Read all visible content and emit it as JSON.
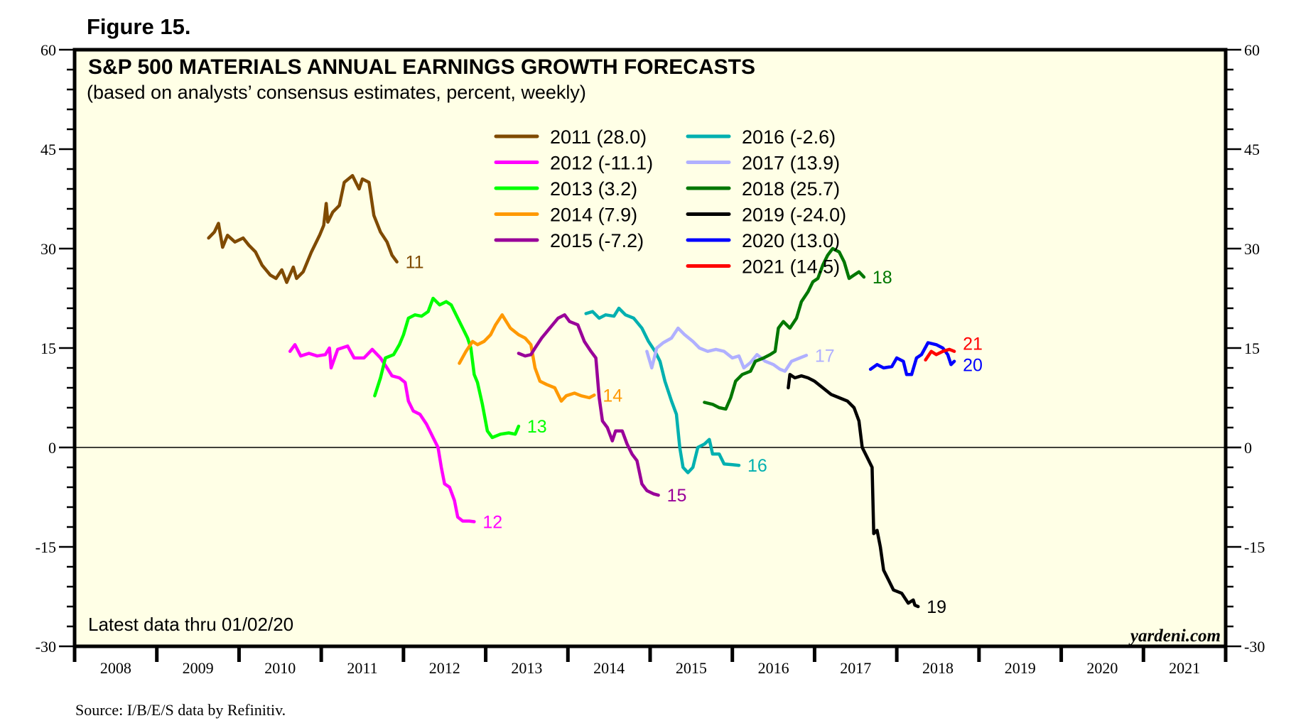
{
  "figure_label": "Figure 15.",
  "source": "Source: I/B/E/S data by Refinitiv.",
  "note": "Latest data thru 01/02/20",
  "brand": "yardeni.com",
  "colors": {
    "plot_background": "#ffffe6",
    "frame": "#000000",
    "zero_line": "#000000"
  },
  "chart_data": {
    "type": "line",
    "title": "S&P 500 MATERIALS ANNUAL EARNINGS GROWTH FORECASTS",
    "subtitle": "(based on analysts’ consensus estimates, percent, weekly)",
    "xlabel": "",
    "ylabel": "",
    "xlim": [
      2008,
      2022
    ],
    "ylim": [
      -30,
      60
    ],
    "y_ticks": [
      -30,
      -15,
      0,
      15,
      30,
      45,
      60
    ],
    "y_minor_step": 3,
    "x_tick_labels": [
      "2008",
      "2009",
      "2010",
      "2011",
      "2012",
      "2013",
      "2014",
      "2015",
      "2016",
      "2017",
      "2018",
      "2019",
      "2020",
      "2021"
    ],
    "zero_line": true,
    "grid": false,
    "legend_position": "top-center",
    "series": [
      {
        "name": "2011 (28.0)",
        "end_label": "11",
        "color": "#7f4a00",
        "points": [
          [
            2009.63,
            31.6
          ],
          [
            2009.7,
            32.5
          ],
          [
            2009.75,
            33.8
          ],
          [
            2009.8,
            30.2
          ],
          [
            2009.86,
            32.0
          ],
          [
            2009.95,
            31.0
          ],
          [
            2010.05,
            31.6
          ],
          [
            2010.12,
            30.5
          ],
          [
            2010.2,
            29.5
          ],
          [
            2010.28,
            27.5
          ],
          [
            2010.38,
            26.0
          ],
          [
            2010.45,
            25.5
          ],
          [
            2010.52,
            26.8
          ],
          [
            2010.58,
            24.9
          ],
          [
            2010.66,
            27.2
          ],
          [
            2010.7,
            25.5
          ],
          [
            2010.78,
            26.5
          ],
          [
            2010.88,
            29.5
          ],
          [
            2010.98,
            32.0
          ],
          [
            2011.03,
            33.5
          ],
          [
            2011.06,
            36.8
          ],
          [
            2011.08,
            34.0
          ],
          [
            2011.14,
            35.5
          ],
          [
            2011.22,
            36.5
          ],
          [
            2011.28,
            40.0
          ],
          [
            2011.38,
            41.0
          ],
          [
            2011.46,
            39.0
          ],
          [
            2011.5,
            40.5
          ],
          [
            2011.58,
            40.0
          ],
          [
            2011.64,
            35.0
          ],
          [
            2011.72,
            32.5
          ],
          [
            2011.8,
            31.0
          ],
          [
            2011.86,
            29.0
          ],
          [
            2011.92,
            28.0
          ]
        ]
      },
      {
        "name": "2012 (-11.1)",
        "end_label": "12",
        "color": "#ff00ff",
        "points": [
          [
            2010.62,
            14.5
          ],
          [
            2010.68,
            15.5
          ],
          [
            2010.75,
            13.8
          ],
          [
            2010.85,
            14.2
          ],
          [
            2010.95,
            13.8
          ],
          [
            2011.05,
            14.0
          ],
          [
            2011.1,
            15.0
          ],
          [
            2011.12,
            12.0
          ],
          [
            2011.2,
            14.8
          ],
          [
            2011.32,
            15.3
          ],
          [
            2011.4,
            13.5
          ],
          [
            2011.52,
            13.5
          ],
          [
            2011.62,
            14.8
          ],
          [
            2011.72,
            13.5
          ],
          [
            2011.8,
            12.0
          ],
          [
            2011.86,
            10.8
          ],
          [
            2011.95,
            10.5
          ],
          [
            2012.02,
            9.8
          ],
          [
            2012.06,
            7.0
          ],
          [
            2012.12,
            5.5
          ],
          [
            2012.2,
            5.0
          ],
          [
            2012.28,
            3.5
          ],
          [
            2012.36,
            1.5
          ],
          [
            2012.42,
            0.0
          ],
          [
            2012.46,
            -3.0
          ],
          [
            2012.5,
            -5.5
          ],
          [
            2012.56,
            -6.0
          ],
          [
            2012.62,
            -8.0
          ],
          [
            2012.66,
            -10.5
          ],
          [
            2012.72,
            -11.1
          ],
          [
            2012.8,
            -11.1
          ],
          [
            2012.86,
            -11.2
          ]
        ]
      },
      {
        "name": "2013 (3.2)",
        "end_label": "13",
        "color": "#00ff00",
        "points": [
          [
            2011.65,
            7.8
          ],
          [
            2011.72,
            10.5
          ],
          [
            2011.78,
            13.5
          ],
          [
            2011.88,
            14.0
          ],
          [
            2011.95,
            15.5
          ],
          [
            2012.0,
            17.0
          ],
          [
            2012.06,
            19.5
          ],
          [
            2012.14,
            20.0
          ],
          [
            2012.22,
            19.8
          ],
          [
            2012.3,
            20.5
          ],
          [
            2012.36,
            22.5
          ],
          [
            2012.44,
            21.5
          ],
          [
            2012.52,
            22.0
          ],
          [
            2012.58,
            21.5
          ],
          [
            2012.64,
            20.0
          ],
          [
            2012.72,
            18.0
          ],
          [
            2012.78,
            16.5
          ],
          [
            2012.82,
            15.0
          ],
          [
            2012.86,
            11.0
          ],
          [
            2012.9,
            9.8
          ],
          [
            2012.96,
            6.5
          ],
          [
            2013.02,
            2.5
          ],
          [
            2013.08,
            1.5
          ],
          [
            2013.18,
            2.0
          ],
          [
            2013.28,
            2.2
          ],
          [
            2013.36,
            2.0
          ],
          [
            2013.4,
            3.2
          ]
        ]
      },
      {
        "name": "2014 (7.9)",
        "end_label": "14",
        "color": "#ff9900",
        "points": [
          [
            2012.68,
            12.7
          ],
          [
            2012.76,
            14.5
          ],
          [
            2012.84,
            16.0
          ],
          [
            2012.9,
            15.5
          ],
          [
            2012.98,
            16.0
          ],
          [
            2013.06,
            17.0
          ],
          [
            2013.12,
            18.5
          ],
          [
            2013.2,
            20.0
          ],
          [
            2013.3,
            18.0
          ],
          [
            2013.4,
            17.0
          ],
          [
            2013.48,
            16.5
          ],
          [
            2013.55,
            15.5
          ],
          [
            2013.6,
            12.0
          ],
          [
            2013.66,
            10.0
          ],
          [
            2013.74,
            9.5
          ],
          [
            2013.84,
            9.0
          ],
          [
            2013.92,
            7.0
          ],
          [
            2013.98,
            7.8
          ],
          [
            2014.08,
            8.2
          ],
          [
            2014.16,
            7.8
          ],
          [
            2014.26,
            7.5
          ],
          [
            2014.32,
            7.9
          ]
        ]
      },
      {
        "name": "2015 (-7.2)",
        "end_label": "15",
        "color": "#990099",
        "points": [
          [
            2013.4,
            14.2
          ],
          [
            2013.48,
            13.8
          ],
          [
            2013.55,
            14.0
          ],
          [
            2013.6,
            15.0
          ],
          [
            2013.68,
            16.5
          ],
          [
            2013.78,
            18.0
          ],
          [
            2013.88,
            19.5
          ],
          [
            2013.96,
            20.0
          ],
          [
            2014.02,
            19.0
          ],
          [
            2014.12,
            18.5
          ],
          [
            2014.2,
            16.0
          ],
          [
            2014.28,
            14.5
          ],
          [
            2014.34,
            13.5
          ],
          [
            2014.38,
            7.5
          ],
          [
            2014.42,
            4.0
          ],
          [
            2014.48,
            3.0
          ],
          [
            2014.54,
            1.0
          ],
          [
            2014.58,
            2.5
          ],
          [
            2014.66,
            2.5
          ],
          [
            2014.72,
            0.5
          ],
          [
            2014.78,
            -1.0
          ],
          [
            2014.84,
            -2.0
          ],
          [
            2014.9,
            -5.5
          ],
          [
            2014.96,
            -6.5
          ],
          [
            2015.04,
            -7.0
          ],
          [
            2015.1,
            -7.2
          ]
        ]
      },
      {
        "name": "2016 (-2.6)",
        "end_label": "16",
        "color": "#00b0b0",
        "points": [
          [
            2014.22,
            20.2
          ],
          [
            2014.3,
            20.5
          ],
          [
            2014.38,
            19.5
          ],
          [
            2014.46,
            20.0
          ],
          [
            2014.56,
            19.8
          ],
          [
            2014.62,
            21.0
          ],
          [
            2014.7,
            20.0
          ],
          [
            2014.8,
            19.5
          ],
          [
            2014.9,
            18.0
          ],
          [
            2014.98,
            16.0
          ],
          [
            2015.06,
            14.5
          ],
          [
            2015.12,
            13.0
          ],
          [
            2015.18,
            10.0
          ],
          [
            2015.26,
            7.0
          ],
          [
            2015.32,
            5.0
          ],
          [
            2015.36,
            0.0
          ],
          [
            2015.4,
            -3.0
          ],
          [
            2015.46,
            -3.8
          ],
          [
            2015.52,
            -3.0
          ],
          [
            2015.58,
            0.0
          ],
          [
            2015.66,
            0.5
          ],
          [
            2015.72,
            1.2
          ],
          [
            2015.76,
            -1.0
          ],
          [
            2015.84,
            -1.0
          ],
          [
            2015.9,
            -2.5
          ],
          [
            2016.0,
            -2.6
          ],
          [
            2016.08,
            -2.7
          ]
        ]
      },
      {
        "name": "2017 (13.9)",
        "end_label": "17",
        "color": "#b0b0ff",
        "points": [
          [
            2014.96,
            14.5
          ],
          [
            2015.02,
            12.0
          ],
          [
            2015.08,
            15.0
          ],
          [
            2015.16,
            15.8
          ],
          [
            2015.26,
            16.5
          ],
          [
            2015.34,
            18.0
          ],
          [
            2015.42,
            17.0
          ],
          [
            2015.52,
            16.0
          ],
          [
            2015.6,
            15.0
          ],
          [
            2015.7,
            14.5
          ],
          [
            2015.8,
            14.8
          ],
          [
            2015.9,
            14.5
          ],
          [
            2016.0,
            13.5
          ],
          [
            2016.08,
            13.8
          ],
          [
            2016.14,
            12.0
          ],
          [
            2016.22,
            12.8
          ],
          [
            2016.3,
            14.0
          ],
          [
            2016.4,
            13.0
          ],
          [
            2016.5,
            12.5
          ],
          [
            2016.58,
            11.8
          ],
          [
            2016.64,
            11.5
          ],
          [
            2016.72,
            13.0
          ],
          [
            2016.82,
            13.5
          ],
          [
            2016.9,
            13.9
          ]
        ]
      },
      {
        "name": "2018 (25.7)",
        "end_label": "18",
        "color": "#007700",
        "points": [
          [
            2015.66,
            6.8
          ],
          [
            2015.76,
            6.5
          ],
          [
            2015.84,
            6.0
          ],
          [
            2015.92,
            5.8
          ],
          [
            2015.98,
            7.5
          ],
          [
            2016.04,
            10.0
          ],
          [
            2016.12,
            11.0
          ],
          [
            2016.22,
            11.5
          ],
          [
            2016.28,
            13.0
          ],
          [
            2016.38,
            13.5
          ],
          [
            2016.46,
            14.0
          ],
          [
            2016.52,
            14.5
          ],
          [
            2016.56,
            18.0
          ],
          [
            2016.62,
            19.0
          ],
          [
            2016.7,
            18.0
          ],
          [
            2016.78,
            19.5
          ],
          [
            2016.84,
            22.0
          ],
          [
            2016.92,
            23.5
          ],
          [
            2016.98,
            25.0
          ],
          [
            2017.04,
            25.5
          ],
          [
            2017.1,
            27.5
          ],
          [
            2017.16,
            29.0
          ],
          [
            2017.22,
            30.0
          ],
          [
            2017.3,
            29.5
          ],
          [
            2017.36,
            28.0
          ],
          [
            2017.42,
            25.5
          ],
          [
            2017.48,
            26.0
          ],
          [
            2017.54,
            26.5
          ],
          [
            2017.6,
            25.7
          ]
        ]
      },
      {
        "name": "2019 (-24.0)",
        "end_label": "19",
        "color": "#000000",
        "points": [
          [
            2016.68,
            9.0
          ],
          [
            2016.7,
            11.0
          ],
          [
            2016.76,
            10.5
          ],
          [
            2016.84,
            10.8
          ],
          [
            2016.92,
            10.5
          ],
          [
            2017.0,
            10.0
          ],
          [
            2017.1,
            9.0
          ],
          [
            2017.2,
            8.0
          ],
          [
            2017.3,
            7.5
          ],
          [
            2017.4,
            7.0
          ],
          [
            2017.48,
            6.0
          ],
          [
            2017.54,
            4.0
          ],
          [
            2017.58,
            0.0
          ],
          [
            2017.64,
            -1.5
          ],
          [
            2017.7,
            -3.0
          ],
          [
            2017.72,
            -13.0
          ],
          [
            2017.76,
            -12.5
          ],
          [
            2017.8,
            -15.0
          ],
          [
            2017.84,
            -18.5
          ],
          [
            2017.9,
            -20.0
          ],
          [
            2017.96,
            -21.5
          ],
          [
            2018.06,
            -22.0
          ],
          [
            2018.14,
            -23.5
          ],
          [
            2018.2,
            -23.0
          ],
          [
            2018.22,
            -23.8
          ],
          [
            2018.26,
            -24.0
          ]
        ]
      },
      {
        "name": "2020 (13.0)",
        "end_label": "20",
        "color": "#0000ff",
        "points": [
          [
            2017.68,
            11.8
          ],
          [
            2017.76,
            12.5
          ],
          [
            2017.84,
            12.0
          ],
          [
            2017.94,
            12.2
          ],
          [
            2018.0,
            13.5
          ],
          [
            2018.08,
            13.0
          ],
          [
            2018.12,
            11.0
          ],
          [
            2018.18,
            11.0
          ],
          [
            2018.24,
            13.5
          ],
          [
            2018.3,
            14.0
          ],
          [
            2018.38,
            15.8
          ],
          [
            2018.48,
            15.5
          ],
          [
            2018.56,
            15.0
          ],
          [
            2018.62,
            14.0
          ],
          [
            2018.66,
            12.5
          ],
          [
            2018.7,
            13.0
          ]
        ]
      },
      {
        "name": "2021 (14.5)",
        "end_label": "21",
        "color": "#ff0000",
        "points": [
          [
            2018.35,
            13.2
          ],
          [
            2018.42,
            14.5
          ],
          [
            2018.48,
            14.0
          ],
          [
            2018.56,
            14.5
          ],
          [
            2018.64,
            14.8
          ],
          [
            2018.7,
            14.5
          ]
        ]
      }
    ]
  }
}
